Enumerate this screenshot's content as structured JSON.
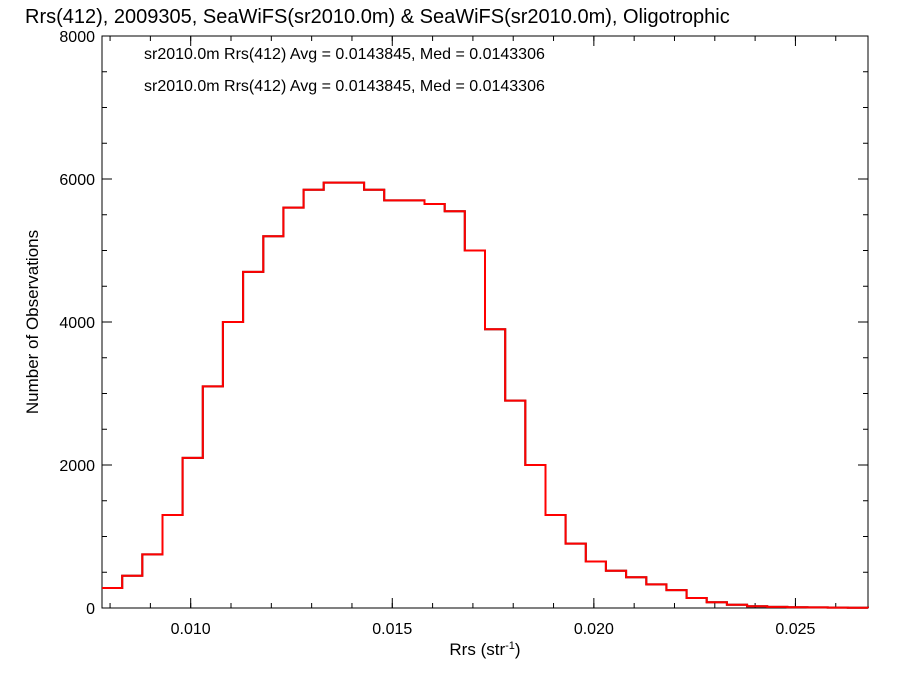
{
  "chart_data": {
    "type": "histogram",
    "title": "Rrs(412), 2009305, SeaWiFS(sr2010.0m) & SeaWiFS(sr2010.0m), Oligotrophic",
    "xlabel": "Rrs (str",
    "xlabel_sup": "-1",
    "xlabel_close": ")",
    "ylabel": "Number of Observations",
    "xlim": [
      0.0078,
      0.0268
    ],
    "ylim": [
      0,
      8000
    ],
    "xticks": [
      0.01,
      0.015,
      0.02,
      0.025
    ],
    "xtick_labels": [
      "0.010",
      "0.015",
      "0.020",
      "0.025"
    ],
    "yticks": [
      0,
      2000,
      4000,
      6000,
      8000
    ],
    "ytick_labels": [
      "0",
      "2000",
      "4000",
      "6000",
      "8000"
    ],
    "grid": false,
    "colors": {
      "series1": "#000000",
      "series2": "#ff0000"
    },
    "annotations": [
      {
        "text": "sr2010.0m Rrs(412) Avg = 0.0143845, Med = 0.0143306",
        "color": "#000000"
      },
      {
        "text": "sr2010.0m Rrs(412) Avg = 0.0143845, Med = 0.0143306",
        "color": "#ff0000"
      }
    ],
    "series": [
      {
        "x": [
          0.0078,
          0.0083,
          0.0088,
          0.0093,
          0.0098,
          0.0103,
          0.0108,
          0.0113,
          0.0118,
          0.0123,
          0.0128,
          0.0133,
          0.0138,
          0.0143,
          0.0148,
          0.0153,
          0.0158,
          0.0163,
          0.0168,
          0.0173,
          0.0178,
          0.0183,
          0.0188,
          0.0193,
          0.0198,
          0.0203,
          0.0208,
          0.0213,
          0.0218,
          0.0223,
          0.0228,
          0.0233,
          0.0238,
          0.0243,
          0.0248,
          0.0253,
          0.0258,
          0.0263,
          0.0268
        ],
        "y": [
          280,
          450,
          750,
          1300,
          2100,
          3100,
          4000,
          4700,
          5200,
          5600,
          5850,
          5950,
          5950,
          5850,
          5700,
          5700,
          5650,
          5550,
          5000,
          3900,
          2900,
          2000,
          1300,
          900,
          650,
          520,
          430,
          330,
          250,
          140,
          80,
          45,
          25,
          15,
          10,
          8,
          5,
          3,
          2
        ]
      },
      {
        "x": [
          0.0078,
          0.0083,
          0.0088,
          0.0093,
          0.0098,
          0.0103,
          0.0108,
          0.0113,
          0.0118,
          0.0123,
          0.0128,
          0.0133,
          0.0138,
          0.0143,
          0.0148,
          0.0153,
          0.0158,
          0.0163,
          0.0168,
          0.0173,
          0.0178,
          0.0183,
          0.0188,
          0.0193,
          0.0198,
          0.0203,
          0.0208,
          0.0213,
          0.0218,
          0.0223,
          0.0228,
          0.0233,
          0.0238,
          0.0243,
          0.0248,
          0.0253,
          0.0258,
          0.0263,
          0.0268
        ],
        "y": [
          280,
          450,
          750,
          1300,
          2100,
          3100,
          4000,
          4700,
          5200,
          5600,
          5850,
          5950,
          5950,
          5850,
          5700,
          5700,
          5650,
          5550,
          5000,
          3900,
          2900,
          2000,
          1300,
          900,
          650,
          520,
          430,
          330,
          250,
          140,
          80,
          45,
          25,
          15,
          10,
          8,
          5,
          3,
          2
        ]
      }
    ]
  }
}
